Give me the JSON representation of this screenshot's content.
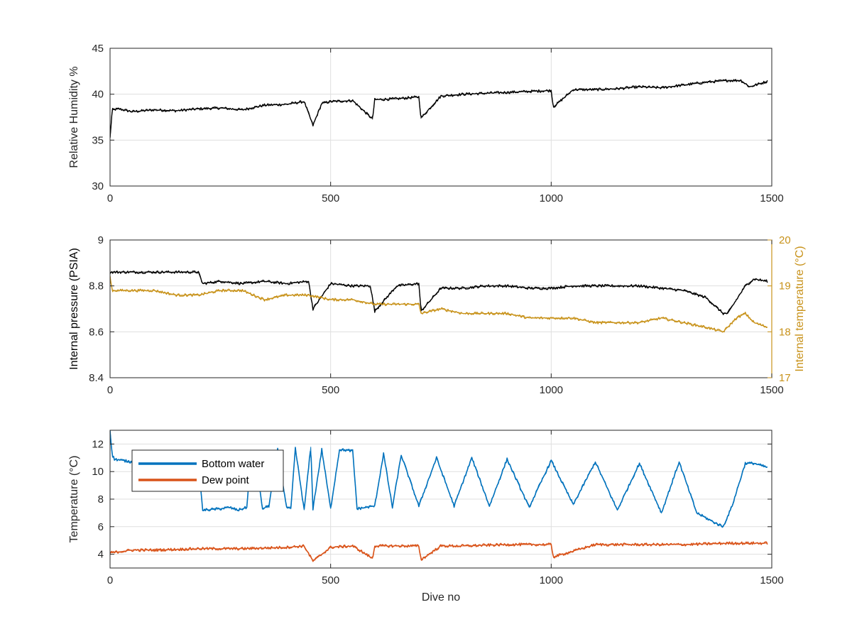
{
  "figure": {
    "xlabel": "Dive no"
  },
  "chart_data": [
    {
      "type": "line",
      "xlabel": "",
      "ylabel": "Relative Humidity %",
      "xlim": [
        0,
        1500
      ],
      "ylim": [
        30,
        45
      ],
      "xticks": [
        0,
        500,
        1000,
        1500
      ],
      "yticks": [
        30,
        35,
        40,
        45
      ],
      "grid": true,
      "series": [
        {
          "color": "#000000",
          "x": [
            0,
            5,
            20,
            50,
            100,
            150,
            200,
            250,
            300,
            350,
            400,
            440,
            460,
            480,
            500,
            550,
            595,
            600,
            650,
            700,
            705,
            750,
            800,
            850,
            900,
            950,
            1000,
            1005,
            1050,
            1100,
            1150,
            1200,
            1250,
            1300,
            1350,
            1400,
            1430,
            1450,
            1470,
            1490
          ],
          "y": [
            35.2,
            38.3,
            38.4,
            38.1,
            38.3,
            38.2,
            38.4,
            38.5,
            38.3,
            38.8,
            38.9,
            39.2,
            36.6,
            39.0,
            39.2,
            39.3,
            37.3,
            39.4,
            39.5,
            39.7,
            37.4,
            39.8,
            40.0,
            40.1,
            40.2,
            40.3,
            40.4,
            38.6,
            40.5,
            40.5,
            40.6,
            40.8,
            40.7,
            41.0,
            41.3,
            41.5,
            41.5,
            40.8,
            41.1,
            41.4
          ]
        }
      ]
    },
    {
      "type": "line",
      "xlabel": "",
      "ylabel": "Internal pressure (PSIA)",
      "ylabel_right": "Internal temperature (°C)",
      "xlim": [
        0,
        1500
      ],
      "ylim": [
        8.4,
        9
      ],
      "ylim_right": [
        17,
        20
      ],
      "xticks": [
        0,
        500,
        1000,
        1500
      ],
      "yticks": [
        "8.4",
        "8.6",
        "8.8",
        "9"
      ],
      "yticks_right": [
        17,
        18,
        19,
        20
      ],
      "grid": true,
      "series": [
        {
          "axis": "left",
          "color": "#000000",
          "x": [
            0,
            200,
            210,
            250,
            300,
            350,
            400,
            450,
            460,
            500,
            550,
            590,
            600,
            650,
            700,
            705,
            750,
            800,
            850,
            900,
            950,
            1000,
            1050,
            1100,
            1150,
            1200,
            1250,
            1300,
            1350,
            1390,
            1400,
            1420,
            1440,
            1460,
            1490
          ],
          "y": [
            8.86,
            8.86,
            8.81,
            8.82,
            8.81,
            8.82,
            8.81,
            8.82,
            8.7,
            8.81,
            8.8,
            8.8,
            8.69,
            8.8,
            8.81,
            8.69,
            8.79,
            8.79,
            8.8,
            8.8,
            8.79,
            8.79,
            8.8,
            8.8,
            8.8,
            8.8,
            8.79,
            8.78,
            8.75,
            8.68,
            8.68,
            8.74,
            8.8,
            8.83,
            8.82
          ]
        },
        {
          "axis": "right",
          "color": "#C8921A",
          "x": [
            0,
            5,
            50,
            100,
            150,
            200,
            250,
            300,
            350,
            400,
            450,
            500,
            550,
            600,
            650,
            700,
            705,
            750,
            800,
            850,
            900,
            950,
            1000,
            1050,
            1100,
            1150,
            1200,
            1250,
            1300,
            1350,
            1390,
            1420,
            1440,
            1460,
            1490
          ],
          "y": [
            19.2,
            18.9,
            18.9,
            18.9,
            18.8,
            18.8,
            18.9,
            18.9,
            18.7,
            18.8,
            18.8,
            18.7,
            18.7,
            18.6,
            18.6,
            18.6,
            18.4,
            18.5,
            18.4,
            18.4,
            18.4,
            18.3,
            18.3,
            18.3,
            18.2,
            18.2,
            18.2,
            18.3,
            18.2,
            18.1,
            18.0,
            18.3,
            18.4,
            18.2,
            18.1
          ]
        }
      ]
    },
    {
      "type": "line",
      "xlabel": "Dive no",
      "ylabel": "Temperature (°C)",
      "xlim": [
        0,
        1500
      ],
      "ylim": [
        3,
        13
      ],
      "xticks": [
        0,
        500,
        1000,
        1500
      ],
      "yticks": [
        4,
        6,
        8,
        10,
        12
      ],
      "grid": true,
      "legend": {
        "position": "top-left"
      },
      "series": [
        {
          "name": "Bottom water",
          "color": "#0072BD",
          "x": [
            0,
            5,
            10,
            50,
            100,
            150,
            200,
            210,
            250,
            270,
            290,
            310,
            320,
            330,
            345,
            360,
            380,
            400,
            410,
            420,
            440,
            455,
            460,
            480,
            500,
            520,
            550,
            560,
            600,
            620,
            640,
            660,
            700,
            740,
            780,
            820,
            860,
            900,
            950,
            1000,
            1050,
            1100,
            1150,
            1200,
            1250,
            1290,
            1330,
            1370,
            1390,
            1410,
            1440,
            1460,
            1490
          ],
          "y": [
            13.0,
            11.2,
            10.9,
            10.7,
            10.6,
            10.6,
            10.6,
            7.2,
            7.3,
            7.4,
            7.2,
            7.4,
            11.3,
            11.2,
            7.3,
            7.5,
            11.6,
            7.4,
            7.3,
            11.7,
            7.2,
            11.8,
            7.3,
            11.6,
            7.3,
            11.6,
            11.5,
            7.3,
            7.5,
            11.3,
            7.4,
            11.2,
            7.5,
            11.0,
            7.5,
            11.0,
            7.5,
            10.9,
            7.4,
            10.8,
            7.6,
            10.7,
            7.2,
            10.6,
            7.0,
            10.7,
            7.0,
            6.3,
            6.0,
            7.5,
            10.6,
            10.6,
            10.3
          ]
        },
        {
          "name": "Dew point",
          "color": "#D95319",
          "x": [
            0,
            50,
            100,
            200,
            300,
            400,
            440,
            460,
            500,
            550,
            595,
            600,
            650,
            700,
            705,
            750,
            800,
            900,
            1000,
            1005,
            1100,
            1200,
            1300,
            1400,
            1450,
            1490
          ],
          "y": [
            4.1,
            4.3,
            4.3,
            4.4,
            4.4,
            4.5,
            4.6,
            3.5,
            4.5,
            4.6,
            3.7,
            4.6,
            4.6,
            4.6,
            3.6,
            4.6,
            4.6,
            4.7,
            4.7,
            3.8,
            4.7,
            4.7,
            4.7,
            4.8,
            4.8,
            4.8
          ]
        }
      ]
    }
  ]
}
